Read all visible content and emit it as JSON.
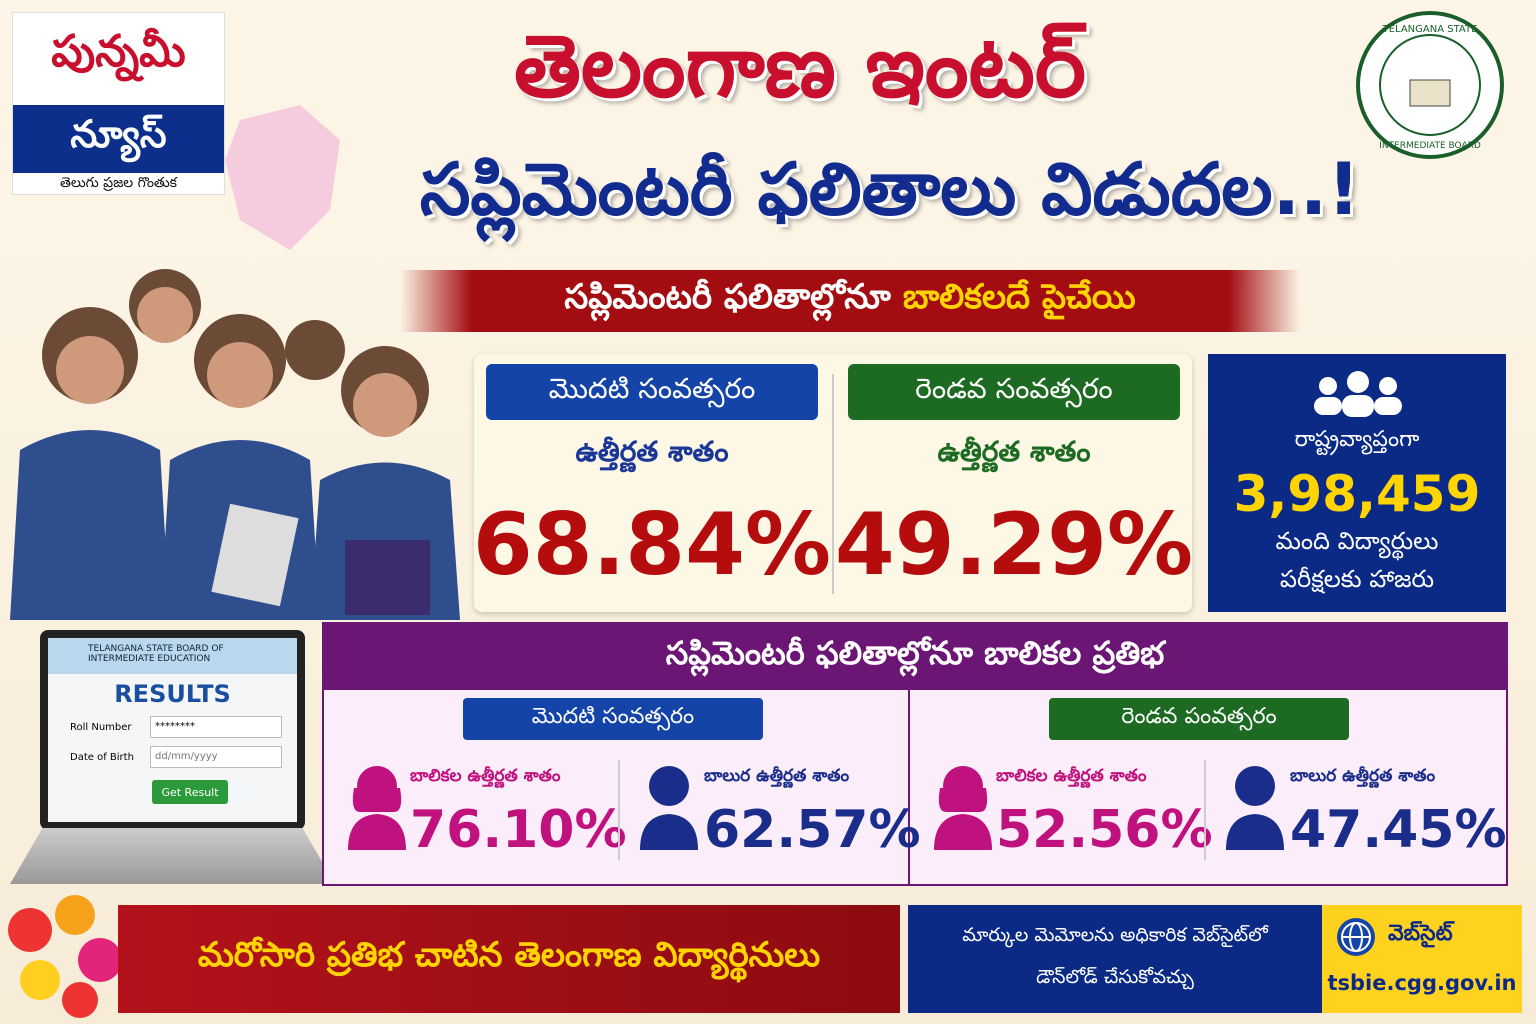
{
  "logo": {
    "line1": "పున్నమీ",
    "line2": "న్యూస్",
    "tagline": "తెలుగు ప్రజల గొంతుక"
  },
  "header": {
    "title_line1": "తెలంగాణ ఇంటర్",
    "title_line2": "సప్లిమెంటరీ ఫలితాలు విడుదల..!",
    "subtitle_part1": "సప్లిమెంటరీ ఫలితాల్లోనూ",
    "subtitle_part2": "బాలికలదే పైచేయి"
  },
  "seal": {
    "top": "TELANGANA STATE",
    "bottom": "INTERMEDIATE BOARD"
  },
  "stats": [
    {
      "year": "మొదటి సంవత్సరం",
      "label": "ఉత్తీర్ణత శాతం",
      "value": "68.84%"
    },
    {
      "year": "రెండవ సంవత్సరం",
      "label": "ఉత్తీర్ణత శాతం",
      "value": "49.29%"
    }
  ],
  "attendance": {
    "prefix": "రాష్ట్రవ్యాప్తంగా",
    "count": "3,98,459",
    "line1": "మంది విద్యార్థులు",
    "line2": "పరీక్షలకు హాజరు"
  },
  "portal": {
    "board": "TELANGANA STATE BOARD OF INTERMEDIATE EDUCATION",
    "heading": "RESULTS",
    "roll_label": "Roll Number",
    "roll_value": "********",
    "dob_label": "Date of Birth",
    "dob_value": "dd/mm/yyyy",
    "button": "Get Result"
  },
  "girls": {
    "title": "సప్లిమెంటరీ ఫలితాల్లోనూ బాలికల ప్రతిభ",
    "years": [
      {
        "year": "మొదటి సంవత్సరం",
        "girls_label": "బాలికల ఉత్తీర్ణత శాతం",
        "girls_value": "76.10%",
        "boys_label": "బాలుర ఉత్తీర్ణత శాతం",
        "boys_value": "62.57%"
      },
      {
        "year": "రెండవ పంవత్సరం",
        "girls_label": "బాలికల ఉత్తీర్ణత శాతం",
        "girls_value": "52.56%",
        "boys_label": "బాలుర ఉత్తీర్ణత శాతం",
        "boys_value": "47.45%"
      }
    ]
  },
  "footer": {
    "slogan": "మరోసారి ప్రతిభ చాటిన తెలంగాణ విద్యార్థినులు",
    "note_line1": "మార్కుల మెమోలను అధికారిక వెబ్‌సైట్‌లో",
    "note_line2": "డౌన్‌లోడ్ చేసుకోవచ్చు",
    "website_label": "వెబ్‌సైట్",
    "website_url": "tsbie.cgg.gov.in"
  }
}
